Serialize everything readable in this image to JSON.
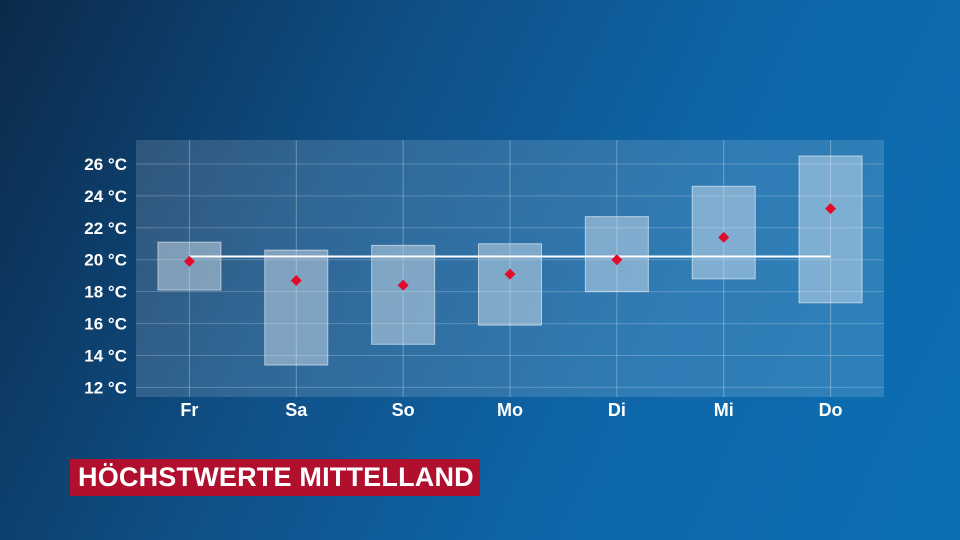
{
  "title": "HÖCHSTWERTE MITTELLAND",
  "chart_data": {
    "type": "range-bar",
    "categories": [
      "Fr",
      "Sa",
      "So",
      "Mo",
      "Di",
      "Mi",
      "Do"
    ],
    "ranges": [
      {
        "low": 18.1,
        "high": 21.1
      },
      {
        "low": 13.4,
        "high": 20.6
      },
      {
        "low": 14.7,
        "high": 20.9
      },
      {
        "low": 15.9,
        "high": 21.0
      },
      {
        "low": 18.0,
        "high": 22.7
      },
      {
        "low": 18.8,
        "high": 24.6
      },
      {
        "low": 17.3,
        "high": 26.5
      }
    ],
    "values": [
      19.9,
      18.7,
      18.4,
      19.1,
      20.0,
      21.4,
      23.2
    ],
    "reference_line": 20.2,
    "yticks": [
      "12 °C",
      "14 °C",
      "16 °C",
      "18 °C",
      "20 °C",
      "22 °C",
      "24 °C",
      "26 °C"
    ],
    "ytick_values": [
      12,
      14,
      16,
      18,
      20,
      22,
      24,
      26
    ],
    "ylim": [
      11.4,
      27.5
    ],
    "grid": true,
    "colors": {
      "plot_bg": "#ffffff",
      "range_box": "#dfeaf3",
      "marker": "#e30b2b",
      "reference": "#ffffff"
    }
  }
}
